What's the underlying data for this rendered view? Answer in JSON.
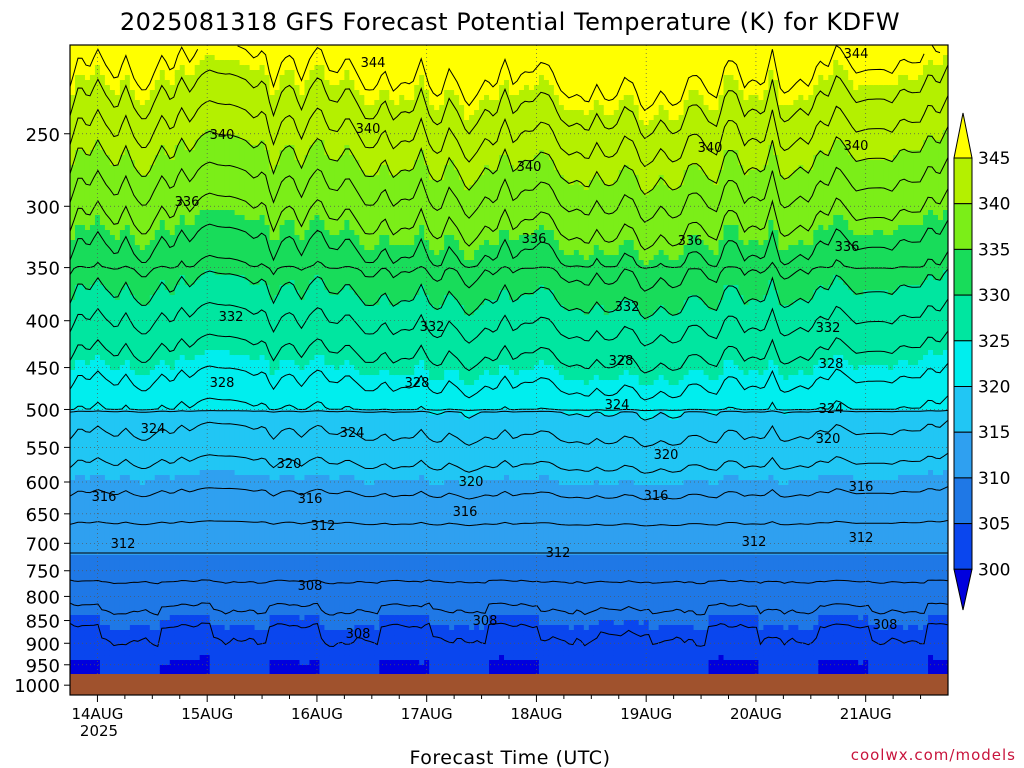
{
  "chart_data": {
    "type": "heatmap",
    "title": "2025081318 GFS Forecast Potential Temperature (K) for KDFW",
    "xlabel": "Forecast Time (UTC)",
    "ylabel": "",
    "credit": "coolwx.com/models",
    "y_scale": "log",
    "y_reversed": true,
    "ylim": [
      1025,
      200
    ],
    "y_ticks": [
      "250",
      "300",
      "350",
      "400",
      "450",
      "500",
      "550",
      "600",
      "650",
      "700",
      "750",
      "800",
      "850",
      "900",
      "950",
      "1000"
    ],
    "x_ticks": [
      "14AUG",
      "15AUG",
      "16AUG",
      "17AUG",
      "18AUG",
      "19AUG",
      "20AUG",
      "21AUG"
    ],
    "x_year_label": "2025",
    "xlim": [
      "2025-08-13T18:00Z",
      "2025-08-21T18:00Z"
    ],
    "colorbar": {
      "levels": [
        300,
        305,
        310,
        315,
        320,
        325,
        330,
        335,
        340,
        345
      ],
      "labels": [
        "300",
        "305",
        "310",
        "315",
        "320",
        "325",
        "330",
        "335",
        "340",
        "345"
      ],
      "colors": [
        "#0000dd",
        "#0a46ee",
        "#1f78e6",
        "#2fa0f0",
        "#21c6f4",
        "#00eeee",
        "#00e6a0",
        "#18dc5a",
        "#7bee18",
        "#b4f000",
        "#ffff00"
      ]
    },
    "contour_labels": [
      "344",
      "344",
      "340",
      "340",
      "340",
      "340",
      "340",
      "336",
      "336",
      "336",
      "336",
      "332",
      "332",
      "332",
      "332",
      "328",
      "328",
      "328",
      "328",
      "324",
      "324",
      "324",
      "324",
      "320",
      "320",
      "320",
      "320",
      "316",
      "316",
      "316",
      "316",
      "316",
      "312",
      "312",
      "312",
      "312",
      "312",
      "308",
      "308",
      "308",
      "308"
    ],
    "series": [
      {
        "x": [
          "13AUG18",
          "14AUG18",
          "15AUG18",
          "16AUG18",
          "17AUG18",
          "18AUG18",
          "19AUG18",
          "20AUG18",
          "21AUG18"
        ],
        "pressure_of_isentrope": {
          "340": [
            268,
            255,
            262,
            270,
            265,
            258,
            262,
            255,
            246
          ],
          "332": [
            405,
            402,
            410,
            400,
            395,
            390,
            395,
            398,
            388
          ],
          "324": [
            548,
            545,
            548,
            530,
            520,
            525,
            528,
            528,
            535
          ],
          "316": [
            675,
            680,
            668,
            660,
            640,
            648,
            655,
            658,
            660
          ],
          "308": [
            805,
            815,
            815,
            830,
            810,
            818,
            830,
            840,
            835
          ]
        }
      }
    ],
    "grid": true,
    "ground": "below 1000 hPa shaded brown"
  }
}
